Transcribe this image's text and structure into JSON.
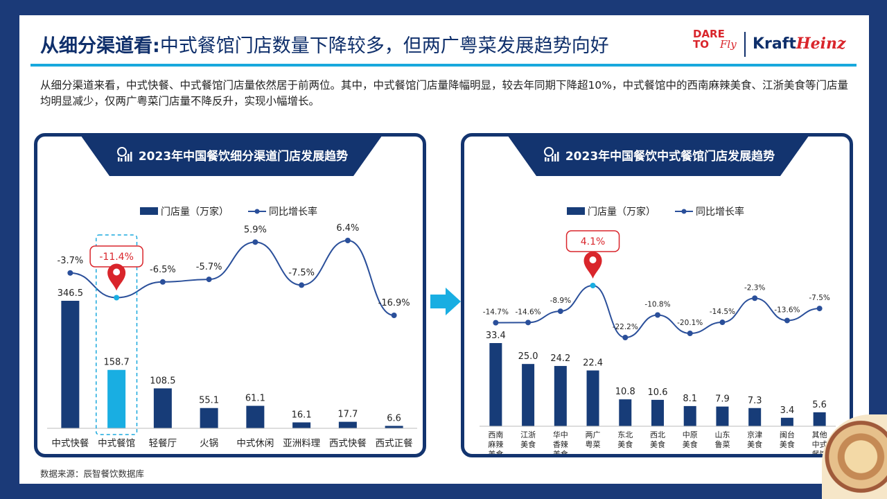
{
  "title": {
    "bold": "从细分渠道看:",
    "rest": "中式餐馆门店数量下降较多，但两广粤菜发展趋势向好"
  },
  "logos": {
    "dare_line1": "DARE",
    "dare_line2": "TO",
    "dare_fly": "Fly",
    "kraft": "Kraft",
    "heinz": "Heinz"
  },
  "description": "从细分渠道来看，中式快餐、中式餐馆门店量依然居于前两位。其中，中式餐馆门店量降幅明显，较去年同期下降超10%，中式餐馆中的西南麻辣美食、江浙美食等门店量均明显减少，仅两广粤菜门店量不降反升，实现小幅增长。",
  "source": "数据来源：辰智餐饮数据库",
  "colors": {
    "navy": "#13346f",
    "bar": "#173c78",
    "highlight_bar": "#19aee2",
    "line": "#2a4f9a",
    "pin": "#d9252b",
    "accent": "#18a8dd"
  },
  "chart_data": [
    {
      "type": "bar",
      "title": "2023年中国餐饮细分渠道门店发展趋势",
      "legend": [
        "门店量（万家）",
        "同比增长率"
      ],
      "categories": [
        "中式快餐",
        "中式餐馆",
        "轻餐厅",
        "火锅",
        "中式休闲",
        "亚洲料理",
        "西式快餐",
        "西式正餐"
      ],
      "series": [
        {
          "name": "门店量（万家）",
          "type": "bar",
          "values": [
            346.5,
            158.7,
            108.5,
            55.1,
            61.1,
            16.1,
            17.7,
            6.6
          ],
          "labels": [
            "346.5",
            "158.7",
            "108.5",
            "55.1",
            "61.1",
            "16.1",
            "17.7",
            "6.6"
          ]
        },
        {
          "name": "同比增长率",
          "type": "line",
          "values": [
            -3.7,
            -11.4,
            -6.5,
            -5.7,
            5.9,
            -7.5,
            6.4,
            -16.9
          ],
          "labels": [
            "-3.7%",
            "-11.4%",
            "-6.5%",
            "-5.7%",
            "5.9%",
            "-7.5%",
            "6.4%",
            "-16.9%"
          ]
        }
      ],
      "highlight_index": 1,
      "highlight_label": "-11.4%"
    },
    {
      "type": "bar",
      "title": "2023年中国餐饮中式餐馆门店发展趋势",
      "legend": [
        "门店量（万家）",
        "同比增长率"
      ],
      "categories": [
        [
          "西南",
          "麻辣",
          "美食"
        ],
        [
          "江浙",
          "美食"
        ],
        [
          "华中",
          "香辣",
          "美食"
        ],
        [
          "两广",
          "粤菜"
        ],
        [
          "东北",
          "美食"
        ],
        [
          "西北",
          "美食"
        ],
        [
          "中原",
          "美食"
        ],
        [
          "山东",
          "鲁菜"
        ],
        [
          "京津",
          "美食"
        ],
        [
          "闽台",
          "美食"
        ],
        [
          "其他",
          "中式",
          "餐馆"
        ]
      ],
      "series": [
        {
          "name": "门店量（万家）",
          "type": "bar",
          "values": [
            33.4,
            25.0,
            24.2,
            22.4,
            10.8,
            10.6,
            8.1,
            7.9,
            7.3,
            3.4,
            5.6
          ],
          "labels": [
            "33.4",
            "25.0",
            "24.2",
            "22.4",
            "10.8",
            "10.6",
            "8.1",
            "7.9",
            "7.3",
            "3.4",
            "5.6"
          ]
        },
        {
          "name": "同比增长率",
          "type": "line",
          "values": [
            -14.7,
            -14.6,
            -8.9,
            4.1,
            -22.2,
            -10.8,
            -20.1,
            -14.5,
            -2.3,
            -13.6,
            -7.5
          ],
          "labels": [
            "-14.7%",
            "-14.6%",
            "-8.9%",
            "4.1%",
            "-22.2%",
            "-10.8%",
            "-20.1%",
            "-14.5%",
            "-2.3%",
            "-13.6%",
            "-7.5%"
          ]
        }
      ],
      "highlight_index": 3,
      "highlight_label": "4.1%"
    }
  ]
}
